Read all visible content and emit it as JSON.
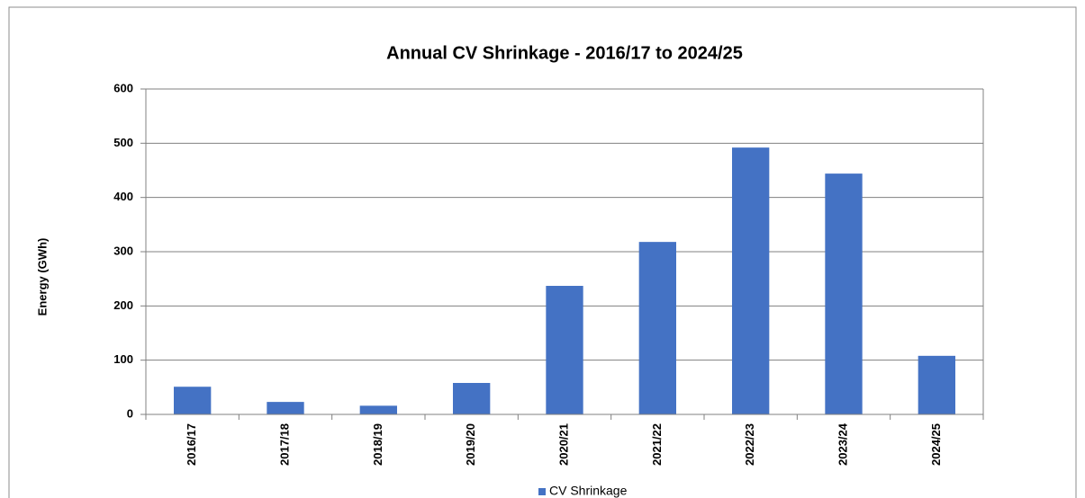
{
  "chart_data": {
    "type": "bar",
    "title": "Annual CV Shrinkage - 2016/17 to 2024/25",
    "y_label": "Energy (GWh)",
    "categories": [
      "2016/17",
      "2017/18",
      "2018/19",
      "2019/20",
      "2020/21",
      "2021/22",
      "2022/23",
      "2023/24",
      "2024/25"
    ],
    "series": [
      {
        "name": "CV Shrinkage",
        "color": "#4472c4",
        "values": [
          51,
          23,
          16,
          58,
          237,
          318,
          492,
          444,
          108
        ]
      }
    ],
    "ylim": [
      0,
      600
    ],
    "yticks": [
      0,
      100,
      200,
      300,
      400,
      500,
      600
    ],
    "grid": true,
    "legend": "bottom"
  }
}
